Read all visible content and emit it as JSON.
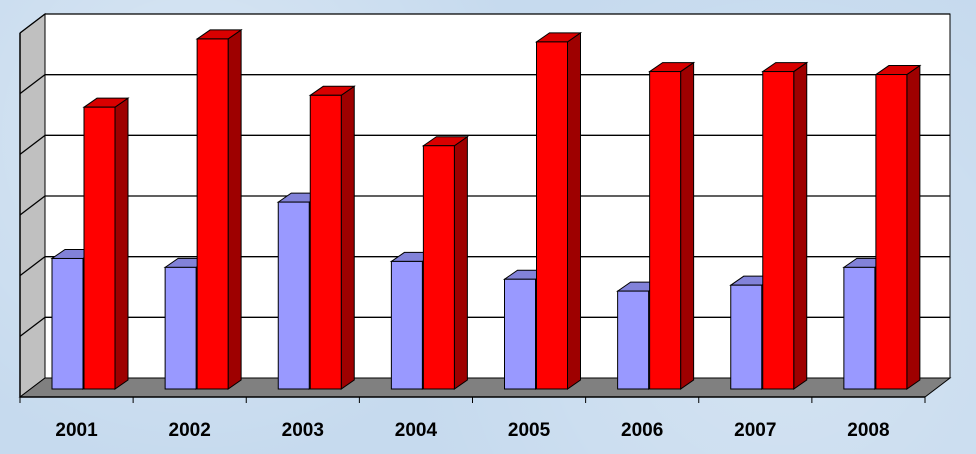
{
  "chart_data": {
    "type": "bar",
    "style": "3d-clustered-column",
    "categories": [
      "2001",
      "2002",
      "2003",
      "2004",
      "2005",
      "2006",
      "2007",
      "2008"
    ],
    "series": [
      {
        "values": [
          2.2,
          2.05,
          3.15,
          2.15,
          1.85,
          1.65,
          1.75,
          2.05
        ],
        "color": "#9999ff"
      },
      {
        "values": [
          4.75,
          5.9,
          4.95,
          4.1,
          5.85,
          5.35,
          5.35,
          5.3
        ],
        "color": "#ff0000"
      }
    ],
    "title": "",
    "xlabel": "",
    "ylabel": "",
    "ylim": [
      0,
      6
    ],
    "y_tick_labels_shown": false,
    "gridlines": true,
    "legend": "none",
    "colors": {
      "wall": "#ffffff",
      "side_wall": "#c0c0c0",
      "floor": "#808080",
      "grid": "#000000",
      "background": "#c6daee"
    }
  }
}
